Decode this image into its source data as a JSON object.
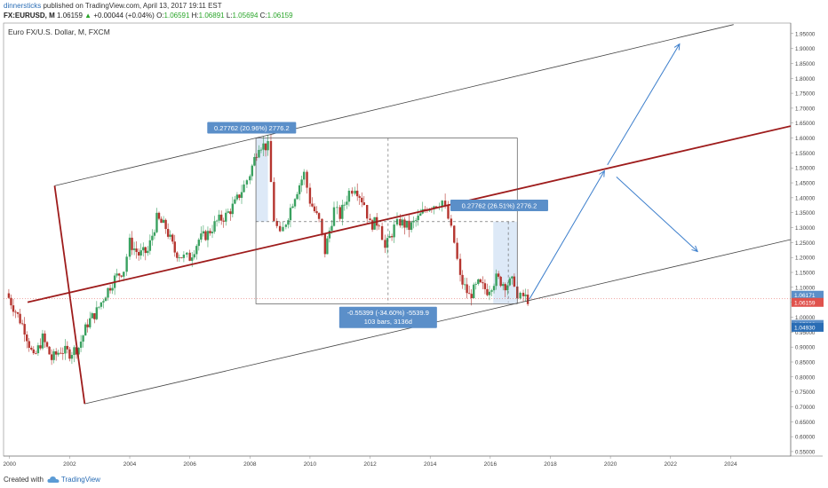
{
  "header": {
    "user": "dinnersticks",
    "published": "published on TradingView.com, April 13, 2017 19:11 EST",
    "symbol": "FX:EURUSD, M",
    "last": "1.06159",
    "change": "+0.00044 (+0.04%)",
    "change_arrow": "▲",
    "o_label": "O:",
    "o_value": "1.06591",
    "h_label": "H:",
    "h_value": "1.06891",
    "l_label": "L:",
    "l_value": "1.05694",
    "c_label": "C:",
    "c_value": "1.06159"
  },
  "footer": {
    "created_with": "Created with",
    "brand": "TradingView"
  },
  "chart_data": {
    "type": "candlestick",
    "title": "Euro FX/U.S. Dollar, M, FXCM",
    "xlim": [
      1999.8,
      2026
    ],
    "ylim": [
      0.535,
      1.985
    ],
    "x_ticks": [
      "2000",
      "2002",
      "2004",
      "2006",
      "2008",
      "2010",
      "2012",
      "2014",
      "2016",
      "2018",
      "2020",
      "2022",
      "2024"
    ],
    "y_ticks": [
      "0.55000",
      "0.60000",
      "0.65000",
      "0.70000",
      "0.75000",
      "0.80000",
      "0.85000",
      "0.90000",
      "0.95000",
      "1.00000",
      "1.05000",
      "1.10000",
      "1.15000",
      "1.20000",
      "1.25000",
      "1.30000",
      "1.35000",
      "1.40000",
      "1.45000",
      "1.50000",
      "1.55000",
      "1.60000",
      "1.65000",
      "1.70000",
      "1.75000",
      "1.80000",
      "1.85000",
      "1.90000",
      "1.95000"
    ],
    "price_labels": [
      {
        "value": 1.06171,
        "text": "1.06171",
        "color": "#5b8fc9"
      },
      {
        "value": 1.06159,
        "text": "1.06159",
        "color": "#e0524d"
      },
      {
        "value": 1.05296,
        "text": "1.05296",
        "color": "#5b8fc9"
      },
      {
        "value": 1.0493,
        "text": "1.04930",
        "color": "#2a6db5"
      }
    ],
    "close_series": [
      [
        1999.9,
        1.08
      ],
      [
        2000.2,
        1.02
      ],
      [
        2000.5,
        0.96
      ],
      [
        2000.8,
        0.86
      ],
      [
        2001.1,
        0.93
      ],
      [
        2001.4,
        0.86
      ],
      [
        2001.7,
        0.89
      ],
      [
        2002.0,
        0.88
      ],
      [
        2002.3,
        0.9
      ],
      [
        2002.6,
        0.98
      ],
      [
        2002.9,
        1.02
      ],
      [
        2003.2,
        1.08
      ],
      [
        2003.5,
        1.13
      ],
      [
        2003.8,
        1.16
      ],
      [
        2004.0,
        1.25
      ],
      [
        2004.3,
        1.21
      ],
      [
        2004.6,
        1.22
      ],
      [
        2004.9,
        1.33
      ],
      [
        2005.2,
        1.3
      ],
      [
        2005.5,
        1.22
      ],
      [
        2005.8,
        1.2
      ],
      [
        2006.0,
        1.2
      ],
      [
        2006.3,
        1.26
      ],
      [
        2006.6,
        1.28
      ],
      [
        2006.9,
        1.32
      ],
      [
        2007.2,
        1.34
      ],
      [
        2007.5,
        1.38
      ],
      [
        2007.8,
        1.44
      ],
      [
        2008.0,
        1.48
      ],
      [
        2008.3,
        1.58
      ],
      [
        2008.6,
        1.57
      ],
      [
        2008.8,
        1.33
      ],
      [
        2009.0,
        1.27
      ],
      [
        2009.2,
        1.32
      ],
      [
        2009.5,
        1.41
      ],
      [
        2009.8,
        1.48
      ],
      [
        2010.0,
        1.39
      ],
      [
        2010.3,
        1.32
      ],
      [
        2010.5,
        1.22
      ],
      [
        2010.8,
        1.36
      ],
      [
        2011.0,
        1.34
      ],
      [
        2011.3,
        1.42
      ],
      [
        2011.5,
        1.44
      ],
      [
        2011.8,
        1.38
      ],
      [
        2012.0,
        1.31
      ],
      [
        2012.3,
        1.32
      ],
      [
        2012.5,
        1.23
      ],
      [
        2012.8,
        1.3
      ],
      [
        2013.0,
        1.32
      ],
      [
        2013.3,
        1.3
      ],
      [
        2013.6,
        1.33
      ],
      [
        2013.9,
        1.37
      ],
      [
        2014.2,
        1.38
      ],
      [
        2014.4,
        1.39
      ],
      [
        2014.6,
        1.33
      ],
      [
        2014.8,
        1.25
      ],
      [
        2015.0,
        1.13
      ],
      [
        2015.3,
        1.07
      ],
      [
        2015.6,
        1.11
      ],
      [
        2015.9,
        1.09
      ],
      [
        2016.2,
        1.13
      ],
      [
        2016.5,
        1.11
      ],
      [
        2016.8,
        1.12
      ],
      [
        2016.9,
        1.06
      ],
      [
        2017.1,
        1.07
      ],
      [
        2017.25,
        1.06
      ]
    ],
    "annotations": [
      {
        "text": "0.27762 (20.96%) 2776.2"
      },
      {
        "text": "0.27762 (26.51%) 2776.2"
      },
      {
        "text": "-0.55399 (-34.60%) -5539.9"
      },
      {
        "text": "103 bars, 3136d"
      }
    ],
    "drawings": {
      "upper_channel": [
        [
          2001.5,
          1.44
        ],
        [
          2024.1,
          1.98
        ]
      ],
      "lower_channel": [
        [
          2002.5,
          0.71
        ],
        [
          2026,
          1.26
        ]
      ],
      "mid_line": [
        [
          2000.6,
          1.05
        ],
        [
          2026,
          1.64
        ]
      ],
      "vertical_line": [
        [
          2001.5,
          1.44
        ],
        [
          2002.5,
          0.71
        ]
      ],
      "range_box": {
        "x": [
          2008.2,
          2016.9
        ],
        "y": [
          1.045,
          1.6
        ]
      },
      "range_box_mid_x": 2012.6,
      "range_box_mid_y": 1.32,
      "arrows": [
        [
          [
            2017.3,
            1.06
          ],
          [
            2019.8,
            1.49
          ]
        ],
        [
          [
            2019.9,
            1.51
          ],
          [
            2022.3,
            1.915
          ]
        ],
        [
          [
            2020.2,
            1.47
          ],
          [
            2022.9,
            1.22
          ]
        ]
      ],
      "highlight_1": {
        "x": [
          2008.2,
          2008.6
        ],
        "y": [
          1.32,
          1.6
        ]
      },
      "highlight_2": {
        "x": [
          2016.1,
          2016.9
        ],
        "y": [
          1.045,
          1.32
        ]
      }
    }
  }
}
